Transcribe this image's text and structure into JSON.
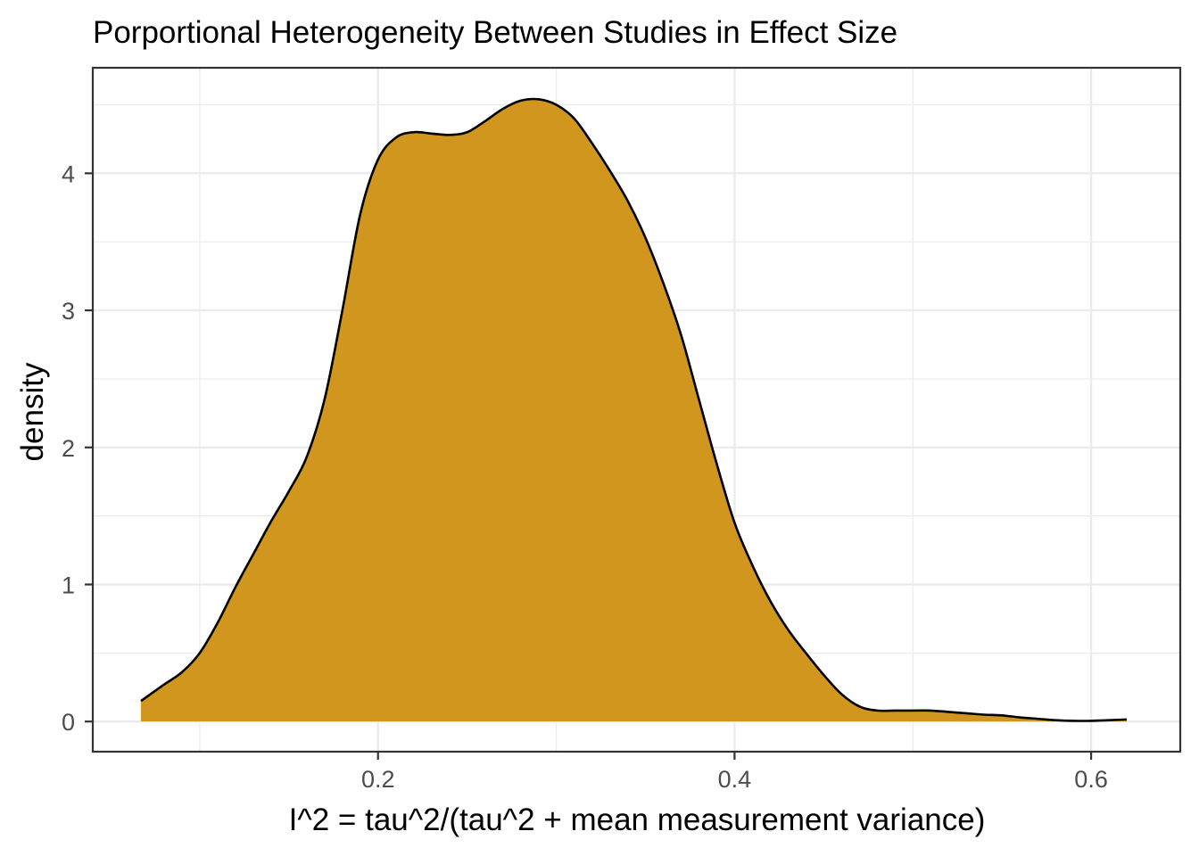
{
  "chart_data": {
    "type": "area",
    "title": "Porportional Heterogeneity Between Studies in Effect Size",
    "xlabel": "I^2 = tau^2/(tau^2 + mean measurement variance)",
    "ylabel": "density",
    "xlim": [
      0.04,
      0.65
    ],
    "ylim": [
      -0.22,
      4.77
    ],
    "x_ticks": [
      0.2,
      0.4,
      0.6
    ],
    "x_tick_labels": [
      "0.2",
      "0.4",
      "0.6"
    ],
    "y_ticks": [
      0,
      1,
      2,
      3,
      4
    ],
    "y_tick_labels": [
      "0",
      "1",
      "2",
      "3",
      "4"
    ],
    "grid": true,
    "fill_color": "#d1961e",
    "line_color": "#000000",
    "series": [
      {
        "x": [
          0.067,
          0.08,
          0.09,
          0.1,
          0.11,
          0.12,
          0.13,
          0.14,
          0.15,
          0.16,
          0.17,
          0.18,
          0.19,
          0.2,
          0.21,
          0.22,
          0.23,
          0.24,
          0.25,
          0.26,
          0.27,
          0.28,
          0.29,
          0.3,
          0.31,
          0.32,
          0.33,
          0.34,
          0.35,
          0.36,
          0.37,
          0.38,
          0.39,
          0.4,
          0.41,
          0.42,
          0.43,
          0.44,
          0.45,
          0.46,
          0.47,
          0.48,
          0.49,
          0.5,
          0.51,
          0.52,
          0.53,
          0.54,
          0.55,
          0.56,
          0.57,
          0.58,
          0.59,
          0.6,
          0.61,
          0.62
        ],
        "values": [
          0.15,
          0.27,
          0.36,
          0.5,
          0.72,
          0.98,
          1.22,
          1.46,
          1.68,
          1.93,
          2.35,
          3.0,
          3.7,
          4.1,
          4.26,
          4.3,
          4.29,
          4.28,
          4.3,
          4.38,
          4.47,
          4.53,
          4.54,
          4.5,
          4.4,
          4.22,
          4.02,
          3.8,
          3.53,
          3.2,
          2.82,
          2.35,
          1.88,
          1.45,
          1.14,
          0.88,
          0.67,
          0.5,
          0.34,
          0.2,
          0.11,
          0.08,
          0.08,
          0.08,
          0.08,
          0.07,
          0.06,
          0.05,
          0.045,
          0.03,
          0.02,
          0.01,
          0.005,
          0.005,
          0.01,
          0.015
        ]
      }
    ]
  }
}
